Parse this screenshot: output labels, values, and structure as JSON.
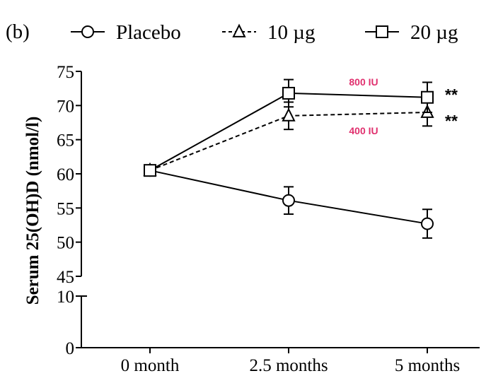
{
  "panel_label": "(b)",
  "chart_data": {
    "type": "line",
    "categories": [
      "0 month",
      "2.5 months",
      "5 months"
    ],
    "ylabel": "Serum 25(OH)D (nmol/l)",
    "xlabel": "",
    "yaxis": {
      "broken": true,
      "lower_segment_ticks": [
        0,
        10
      ],
      "upper_segment_range": [
        45,
        75
      ],
      "upper_segment_ticks": [
        45,
        50,
        55,
        60,
        65,
        70,
        75
      ]
    },
    "grid": false,
    "legend_position": "top",
    "series": [
      {
        "name": "Placebo",
        "marker": "circle",
        "line_style": "solid",
        "values": [
          60.5,
          56.1,
          52.7
        ],
        "error": [
          0,
          2.0,
          2.1
        ]
      },
      {
        "name": "10 µg",
        "marker": "triangle",
        "line_style": "dashed",
        "values": [
          60.5,
          68.5,
          69.0
        ],
        "error": [
          0,
          2.0,
          2.0
        ],
        "annotation": "400 IU",
        "significance": "**"
      },
      {
        "name": "20 µg",
        "marker": "square",
        "line_style": "solid",
        "values": [
          60.5,
          71.8,
          71.2
        ],
        "error": [
          0,
          2.0,
          2.2
        ],
        "annotation": "800 IU",
        "significance": "**"
      }
    ],
    "colors": {
      "axis": "#000000",
      "series_line": "#000000",
      "annotation": "#e0306e"
    }
  }
}
